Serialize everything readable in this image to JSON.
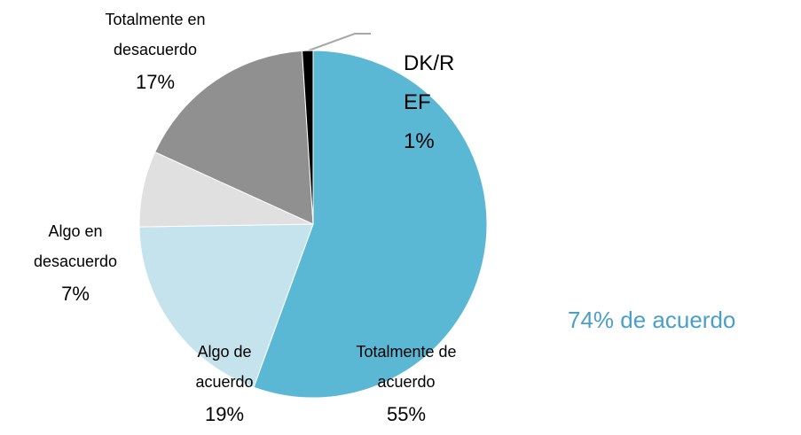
{
  "chart_data": {
    "type": "pie",
    "categories": [
      "Totalmente de acuerdo",
      "Algo de acuerdo",
      "Algo en desacuerdo",
      "Totalmente en desacuerdo",
      "DK/REF"
    ],
    "values": [
      55,
      19,
      7,
      17,
      1
    ],
    "value_labels": [
      "55%",
      "19%",
      "7%",
      "17%",
      "1%"
    ],
    "colors": [
      "#5bb8d4",
      "#c5e3ed",
      "#e0e0e0",
      "#909090",
      "#000000"
    ],
    "annotation": "74% de acuerdo"
  }
}
